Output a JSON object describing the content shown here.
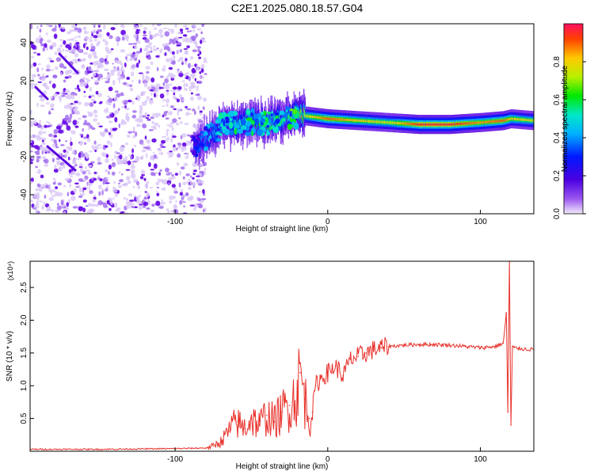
{
  "title": "C2E1.2025.080.18.57.G04",
  "colors": {
    "snr_line": "#e8302a",
    "spectrogram_noise": "#8a3cf0"
  },
  "colorbar": {
    "label": "Normalized spectral amplitude",
    "ticks": [
      "0.0",
      "0.2",
      "0.4",
      "0.6",
      "0.8"
    ],
    "range": [
      0,
      1
    ]
  },
  "chart_data": [
    {
      "type": "heatmap",
      "title": "",
      "xlabel": "Height of straight line (km)",
      "ylabel": "Frequency (Hz)",
      "xlim": [
        -195,
        135
      ],
      "ylim": [
        -50,
        50
      ],
      "xticks": [
        -100,
        0,
        100
      ],
      "yticks": [
        -40,
        -20,
        0,
        20,
        40
      ],
      "noise_region_km": [
        -195,
        -80
      ],
      "signal_ridge": {
        "x": [
          -88,
          -80,
          -70,
          -60,
          -50,
          -40,
          -30,
          -20,
          -10,
          0,
          20,
          40,
          60,
          80,
          100,
          115,
          120,
          135
        ],
        "freq_hz": [
          -16,
          -10,
          -4,
          -3,
          -2,
          -2,
          0,
          2,
          1,
          0,
          -1,
          -2,
          -3,
          -3,
          -2,
          -1,
          0,
          -1
        ],
        "peak_amplitude": [
          0.3,
          0.4,
          0.5,
          0.55,
          0.6,
          0.55,
          0.55,
          0.7,
          0.8,
          0.9,
          0.8,
          0.75,
          0.95,
          0.95,
          0.85,
          0.9,
          0.8,
          0.75
        ]
      }
    },
    {
      "type": "line",
      "title": "",
      "xlabel": "Height of straight line (km)",
      "ylabel": "SNR (10 * v/v)",
      "y_multiplier": "(x10⁴)",
      "xlim": [
        -195,
        135
      ],
      "ylim": [
        0,
        2.9
      ],
      "xticks": [
        -100,
        0,
        100
      ],
      "yticks": [
        0.5,
        1.0,
        1.5,
        2.0,
        2.5
      ],
      "series": [
        {
          "x": [
            -195,
            -150,
            -100,
            -80,
            -75,
            -70,
            -65,
            -60,
            -55,
            -50,
            -45,
            -40,
            -35,
            -30,
            -25,
            -20,
            -18,
            -15,
            -12,
            -10,
            -8,
            -5,
            0,
            5,
            10,
            15,
            20,
            25,
            30,
            35,
            40,
            50,
            60,
            70,
            80,
            90,
            100,
            110,
            115,
            117,
            118,
            119,
            120,
            121,
            122,
            125,
            135
          ],
          "y": [
            0.03,
            0.03,
            0.04,
            0.05,
            0.08,
            0.15,
            0.3,
            0.45,
            0.35,
            0.5,
            0.4,
            0.55,
            0.45,
            0.6,
            0.7,
            0.9,
            1.2,
            0.8,
            0.5,
            0.6,
            1.0,
            1.1,
            1.2,
            1.3,
            1.15,
            1.4,
            1.45,
            1.5,
            1.55,
            1.58,
            1.6,
            1.62,
            1.63,
            1.63,
            1.62,
            1.6,
            1.58,
            1.6,
            1.65,
            2.1,
            0.6,
            2.9,
            0.4,
            1.6,
            1.58,
            1.57,
            1.55
          ]
        }
      ]
    }
  ]
}
